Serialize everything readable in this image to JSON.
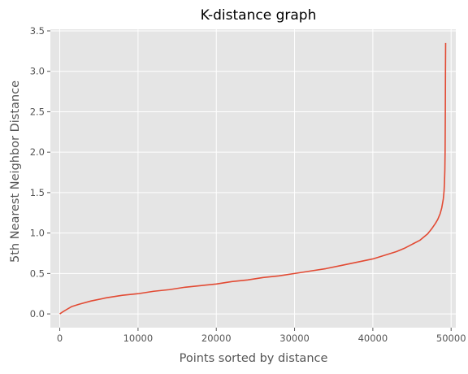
{
  "chart_data": {
    "type": "line",
    "title": "K-distance graph",
    "xlabel": "Points sorted by distance",
    "ylabel": "5th Nearest Neighbor Distance",
    "xlim": [
      -1200,
      50600
    ],
    "ylim": [
      -0.17,
      3.52
    ],
    "xticks": [
      0,
      10000,
      20000,
      30000,
      40000,
      50000
    ],
    "xtick_labels": [
      "0",
      "10000",
      "20000",
      "30000",
      "40000",
      "50000"
    ],
    "yticks": [
      0.0,
      0.5,
      1.0,
      1.5,
      2.0,
      2.5,
      3.0,
      3.5
    ],
    "ytick_labels": [
      "0.0",
      "0.5",
      "1.0",
      "1.5",
      "2.0",
      "2.5",
      "3.0",
      "3.5"
    ],
    "grid": true,
    "series": [
      {
        "name": "",
        "color": "#E24A33",
        "x": [
          0,
          300,
          800,
          1500,
          2500,
          4000,
          6000,
          8000,
          10000,
          12000,
          14000,
          16000,
          18000,
          20000,
          22000,
          24000,
          26000,
          28000,
          30000,
          32000,
          34000,
          36000,
          38000,
          40000,
          42000,
          43000,
          44000,
          45000,
          46000,
          46500,
          47000,
          47500,
          48000,
          48300,
          48600,
          48800,
          49000,
          49100,
          49150,
          49200,
          49230,
          49260,
          49280,
          49300
        ],
        "y": [
          0.0,
          0.02,
          0.05,
          0.09,
          0.12,
          0.16,
          0.2,
          0.23,
          0.25,
          0.28,
          0.3,
          0.33,
          0.35,
          0.37,
          0.4,
          0.42,
          0.45,
          0.47,
          0.5,
          0.53,
          0.56,
          0.6,
          0.64,
          0.68,
          0.74,
          0.77,
          0.81,
          0.86,
          0.91,
          0.95,
          0.99,
          1.05,
          1.12,
          1.17,
          1.24,
          1.31,
          1.42,
          1.52,
          1.62,
          1.78,
          2.0,
          2.5,
          3.0,
          3.35
        ]
      }
    ]
  },
  "colors": {
    "plot_background": "#E5E5E5",
    "grid": "#FFFFFF",
    "line": "#E24A33"
  }
}
